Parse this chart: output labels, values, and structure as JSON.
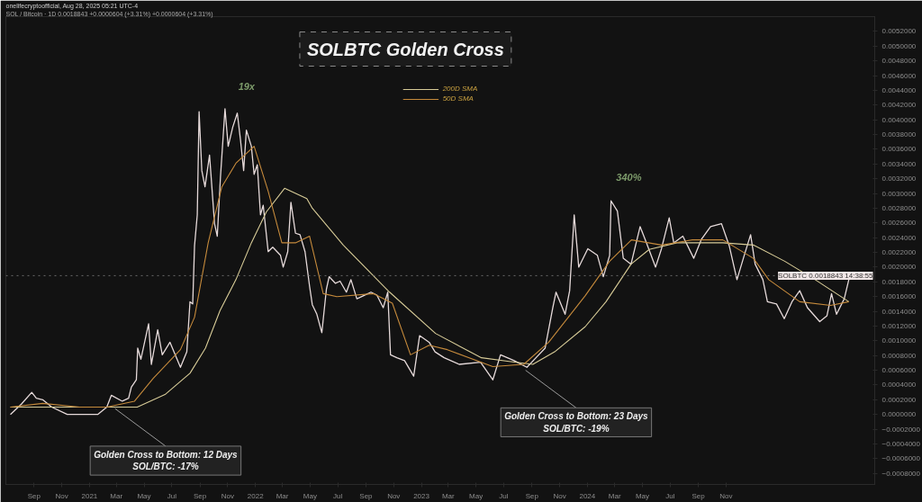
{
  "chart_data": {
    "type": "line",
    "title": "SOLBTC Golden Cross",
    "subtitle": "SOL / Bitcoin · 1D  0.0018843 +0.0000604 (+3.31%) +0.0000604 (+3.31%)",
    "legend": "top",
    "grid": false,
    "xlim": [
      "2020-07-01",
      "2025-09-24"
    ],
    "ylim": [
      -0.00095,
      0.0054
    ],
    "xticks": [
      {
        "value": "2020-09-01",
        "label": "Sep"
      },
      {
        "value": "2020-11-01",
        "label": "Nov"
      },
      {
        "value": "2021-01-01",
        "label": "2021"
      },
      {
        "value": "2021-03-01",
        "label": "Mar"
      },
      {
        "value": "2021-05-01",
        "label": "May"
      },
      {
        "value": "2021-07-01",
        "label": "Jul"
      },
      {
        "value": "2021-09-01",
        "label": "Sep"
      },
      {
        "value": "2021-11-01",
        "label": "Nov"
      },
      {
        "value": "2022-01-01",
        "label": "2022"
      },
      {
        "value": "2022-03-01",
        "label": "Mar"
      },
      {
        "value": "2022-05-01",
        "label": "May"
      },
      {
        "value": "2022-07-01",
        "label": "Jul"
      },
      {
        "value": "2022-09-01",
        "label": "Sep"
      },
      {
        "value": "2022-11-01",
        "label": "Nov"
      },
      {
        "value": "2023-01-01",
        "label": "2023"
      },
      {
        "value": "2023-03-01",
        "label": "Mar"
      },
      {
        "value": "2023-05-01",
        "label": "May"
      },
      {
        "value": "2023-07-01",
        "label": "Jul"
      },
      {
        "value": "2023-09-01",
        "label": "Sep"
      },
      {
        "value": "2023-11-01",
        "label": "Nov"
      },
      {
        "value": "2024-01-01",
        "label": "2024"
      },
      {
        "value": "2024-03-01",
        "label": "Mar"
      },
      {
        "value": "2024-05-01",
        "label": "May"
      },
      {
        "value": "2024-07-01",
        "label": "Jul"
      },
      {
        "value": "2024-09-01",
        "label": "Sep"
      },
      {
        "value": "2024-11-01",
        "label": "Nov"
      }
    ],
    "yticks": [
      {
        "value": 0.0052,
        "label": "0.0052000"
      },
      {
        "value": 0.005,
        "label": "0.0050000"
      },
      {
        "value": 0.0048,
        "label": "0.0048000"
      },
      {
        "value": 0.0046,
        "label": "0.0046000"
      },
      {
        "value": 0.0044,
        "label": "0.0044000"
      },
      {
        "value": 0.0042,
        "label": "0.0042000"
      },
      {
        "value": 0.004,
        "label": "0.0040000"
      },
      {
        "value": 0.0038,
        "label": "0.0038000"
      },
      {
        "value": 0.0036,
        "label": "0.0036000"
      },
      {
        "value": 0.0034,
        "label": "0.0034000"
      },
      {
        "value": 0.0032,
        "label": "0.0032000"
      },
      {
        "value": 0.003,
        "label": "0.0030000"
      },
      {
        "value": 0.0028,
        "label": "0.0028000"
      },
      {
        "value": 0.0026,
        "label": "0.0026000"
      },
      {
        "value": 0.0024,
        "label": "0.0024000"
      },
      {
        "value": 0.0022,
        "label": "0.0022000"
      },
      {
        "value": 0.002,
        "label": "0.0020000"
      },
      {
        "value": 0.0018,
        "label": "0.0018000"
      },
      {
        "value": 0.0016,
        "label": "0.0016000"
      },
      {
        "value": 0.0014,
        "label": "0.0014000"
      },
      {
        "value": 0.0012,
        "label": "0.0012000"
      },
      {
        "value": 0.001,
        "label": "0.0010000"
      },
      {
        "value": 0.0008,
        "label": "0.0008000"
      },
      {
        "value": 0.0006,
        "label": "0.0006000"
      },
      {
        "value": 0.0004,
        "label": "0.0004000"
      },
      {
        "value": 0.0002,
        "label": "0.0002000"
      },
      {
        "value": 0,
        "label": "0.0000000"
      },
      {
        "value": -0.0002,
        "label": "−0.0002000"
      },
      {
        "value": -0.0004,
        "label": "−0.0004000"
      },
      {
        "value": -0.0006,
        "label": "−0.0006000"
      },
      {
        "value": -0.0008,
        "label": "−0.0008000"
      }
    ],
    "series": [
      {
        "color": "#e6dada",
        "x": [
          "2020-07-11",
          "2020-08-04",
          "2020-08-27",
          "2020-09-06",
          "2020-09-20",
          "2020-10-10",
          "2020-11-13",
          "2020-12-23",
          "2021-01-19",
          "2021-02-08",
          "2021-02-18",
          "2021-03-14",
          "2021-03-28",
          "2021-04-03",
          "2021-04-14",
          "2021-04-17",
          "2021-04-24",
          "2021-05-11",
          "2021-05-17",
          "2021-05-31",
          "2021-06-10",
          "2021-06-27",
          "2021-07-20",
          "2021-08-03",
          "2021-08-10",
          "2021-08-16",
          "2021-08-20",
          "2021-08-26",
          "2021-08-30",
          "2021-09-05",
          "2021-09-12",
          "2021-09-22",
          "2021-10-03",
          "2021-10-09",
          "2021-10-16",
          "2021-10-26",
          "2021-11-02",
          "2021-11-12",
          "2021-11-22",
          "2021-11-29",
          "2021-12-06",
          "2021-12-12",
          "2021-12-23",
          "2021-12-29",
          "2022-01-05",
          "2022-01-12",
          "2022-01-18",
          "2022-01-29",
          "2022-02-08",
          "2022-02-25",
          "2022-03-03",
          "2022-03-13",
          "2022-03-20",
          "2022-03-30",
          "2022-04-09",
          "2022-04-20",
          "2022-04-30",
          "2022-05-06",
          "2022-05-16",
          "2022-05-27",
          "2022-06-06",
          "2022-06-12",
          "2022-06-26",
          "2022-07-06",
          "2022-07-20",
          "2022-07-30",
          "2022-08-12",
          "2022-08-26",
          "2022-09-12",
          "2022-09-25",
          "2022-10-09",
          "2022-10-19",
          "2022-10-25",
          "2022-11-08",
          "2022-11-25",
          "2022-12-15",
          "2022-12-28",
          "2023-01-18",
          "2023-01-31",
          "2023-02-20",
          "2023-03-25",
          "2023-05-11",
          "2023-06-07",
          "2023-06-24",
          "2023-07-24",
          "2023-08-21",
          "2023-09-10",
          "2023-09-30",
          "2023-10-17",
          "2023-10-24",
          "2023-11-13",
          "2023-11-23",
          "2023-12-03",
          "2023-12-13",
          "2024-01-02",
          "2024-01-23",
          "2024-02-05",
          "2024-02-19",
          "2024-02-22",
          "2024-03-07",
          "2024-03-20",
          "2024-04-06",
          "2024-04-26",
          "2024-05-10",
          "2024-05-30",
          "2024-06-12",
          "2024-06-29",
          "2024-07-09",
          "2024-07-29",
          "2024-08-22",
          "2024-09-08",
          "2024-09-28",
          "2024-10-22",
          "2024-11-08",
          "2024-11-25",
          "2024-12-11",
          "2024-12-25",
          "2025-01-04",
          "2025-01-21",
          "2025-01-31",
          "2025-02-20",
          "2025-03-09",
          "2025-03-26",
          "2025-04-12",
          "2025-04-29",
          "2025-05-26",
          "2025-06-11",
          "2025-06-21",
          "2025-07-02",
          "2025-07-19",
          "2025-07-29"
        ],
        "values": [
          0,
          0.00014,
          0.0003,
          0.00022,
          0.0002,
          0.0001,
          0,
          0,
          0,
          0.0001,
          0.00026,
          0.00018,
          0.00022,
          0.00037,
          0.00047,
          0.0009,
          0.00075,
          0.00123,
          0.00068,
          0.00115,
          0.00081,
          0.00098,
          0.00064,
          0.00085,
          0.00153,
          0.0015,
          0.00229,
          0.00271,
          0.00411,
          0.00331,
          0.00309,
          0.00352,
          0.00259,
          0.00242,
          0.00322,
          0.00415,
          0.00364,
          0.0039,
          0.00409,
          0.00373,
          0.00331,
          0.00386,
          0.00364,
          0.00326,
          0.00339,
          0.00271,
          0.00284,
          0.00221,
          0.00227,
          0.00216,
          0.002,
          0.00221,
          0.00288,
          0.00246,
          0.00244,
          0.00221,
          0.00174,
          0.00149,
          0.00136,
          0.00111,
          0.0017,
          0.00187,
          0.00178,
          0.00181,
          0.00166,
          0.00183,
          0.00157,
          0.00161,
          0.00166,
          0.00162,
          0.00145,
          0.00166,
          0.00081,
          0.00077,
          0.00073,
          0.00052,
          0.00107,
          0.00098,
          0.00085,
          0.00077,
          0.00068,
          0.00071,
          0.00047,
          0.00081,
          0.00073,
          0.00064,
          0.00077,
          0.0009,
          0.00145,
          0.00166,
          0.00136,
          0.00168,
          0.00271,
          0.002,
          0.00225,
          0.00216,
          0.00187,
          0.00216,
          0.0029,
          0.00276,
          0.00212,
          0.00204,
          0.00255,
          0.00233,
          0.002,
          0.00225,
          0.00267,
          0.00233,
          0.00242,
          0.00212,
          0.00238,
          0.00255,
          0.00259,
          0.00229,
          0.00183,
          0.00216,
          0.00244,
          0.00204,
          0.00183,
          0.00153,
          0.0015,
          0.0013,
          0.00153,
          0.00168,
          0.00145,
          0.00126,
          0.00134,
          0.00164,
          0.00136,
          0.00157,
          0.00183
        ]
      },
      {
        "name": "200D SMA",
        "color": "#d8cc98",
        "x": [
          "2020-07-11",
          "2020-10-10",
          "2021-02-08",
          "2021-04-16",
          "2021-06-16",
          "2021-08-10",
          "2021-09-13",
          "2021-10-15",
          "2021-11-19",
          "2021-12-23",
          "2022-01-25",
          "2022-03-06",
          "2022-04-24",
          "2022-05-06",
          "2022-07-13",
          "2022-10-23",
          "2023-02-01",
          "2023-05-13",
          "2023-07-13",
          "2023-09-03",
          "2023-10-21",
          "2023-12-27",
          "2024-02-11",
          "2024-04-06",
          "2024-05-16",
          "2024-07-16",
          "2024-10-25",
          "2024-12-31",
          "2025-03-10",
          "2025-05-16",
          "2025-07-29"
        ],
        "values": [
          0.0001,
          0.0001,
          0.0001,
          0.0001,
          0.00027,
          0.00056,
          0.0009,
          0.00141,
          0.00183,
          0.00233,
          0.00275,
          0.00307,
          0.00293,
          0.0028,
          0.0023,
          0.00166,
          0.0011,
          0.00077,
          0.00072,
          0.00068,
          0.00085,
          0.00119,
          0.00153,
          0.00204,
          0.00224,
          0.00233,
          0.00233,
          0.0023,
          0.00208,
          0.00183,
          0.00153
        ]
      },
      {
        "name": "50D SMA",
        "color": "#c58a3c",
        "x": [
          "2020-07-11",
          "2020-09-20",
          "2020-12-10",
          "2021-02-08",
          "2021-04-10",
          "2021-05-21",
          "2021-07-20",
          "2021-08-20",
          "2021-09-19",
          "2021-10-19",
          "2021-11-19",
          "2021-12-29",
          "2022-01-29",
          "2022-02-28",
          "2022-03-30",
          "2022-04-30",
          "2022-05-30",
          "2022-06-29",
          "2022-09-18",
          "2022-10-29",
          "2022-12-08",
          "2023-01-18",
          "2023-02-27",
          "2023-06-07",
          "2023-08-14",
          "2023-10-08",
          "2023-12-27",
          "2024-02-19",
          "2024-04-07",
          "2024-06-12",
          "2024-08-19",
          "2024-10-25",
          "2024-12-31",
          "2025-02-03",
          "2025-04-12",
          "2025-06-19",
          "2025-07-29"
        ],
        "values": [
          0.0001,
          0.00015,
          0.0001,
          0.0001,
          0.00018,
          0.00049,
          0.00088,
          0.00132,
          0.00233,
          0.00309,
          0.00341,
          0.00364,
          0.00303,
          0.00233,
          0.00233,
          0.00242,
          0.00164,
          0.0016,
          0.00164,
          0.00151,
          0.00081,
          0.00094,
          0.00088,
          0.00065,
          0.00068,
          0.00098,
          0.00161,
          0.00208,
          0.00237,
          0.0023,
          0.00237,
          0.00237,
          0.00212,
          0.00183,
          0.00153,
          0.00148,
          0.00153
        ]
      }
    ],
    "ref_lines": [
      {
        "axis": "y",
        "value": 0.0018843,
        "label": "SOLBTC 0.0018843 14:38:55",
        "color": "#6a6a6a",
        "line_style": "dotted"
      }
    ],
    "annotations": [
      "onelifecryptoofficial, Aug 28, 2025 05:21 UTC-4",
      "19x",
      "340%",
      {
        "text": "Golden Cross to Bottom: 12 Days\nSOL/BTC: -17%",
        "x": "2021-02-26",
        "y": 8e-05
      },
      {
        "text": "Golden Cross to Bottom: 23 Days\nSOL/BTC: -19%",
        "x": "2023-08-18",
        "y": 0.0006
      }
    ]
  }
}
